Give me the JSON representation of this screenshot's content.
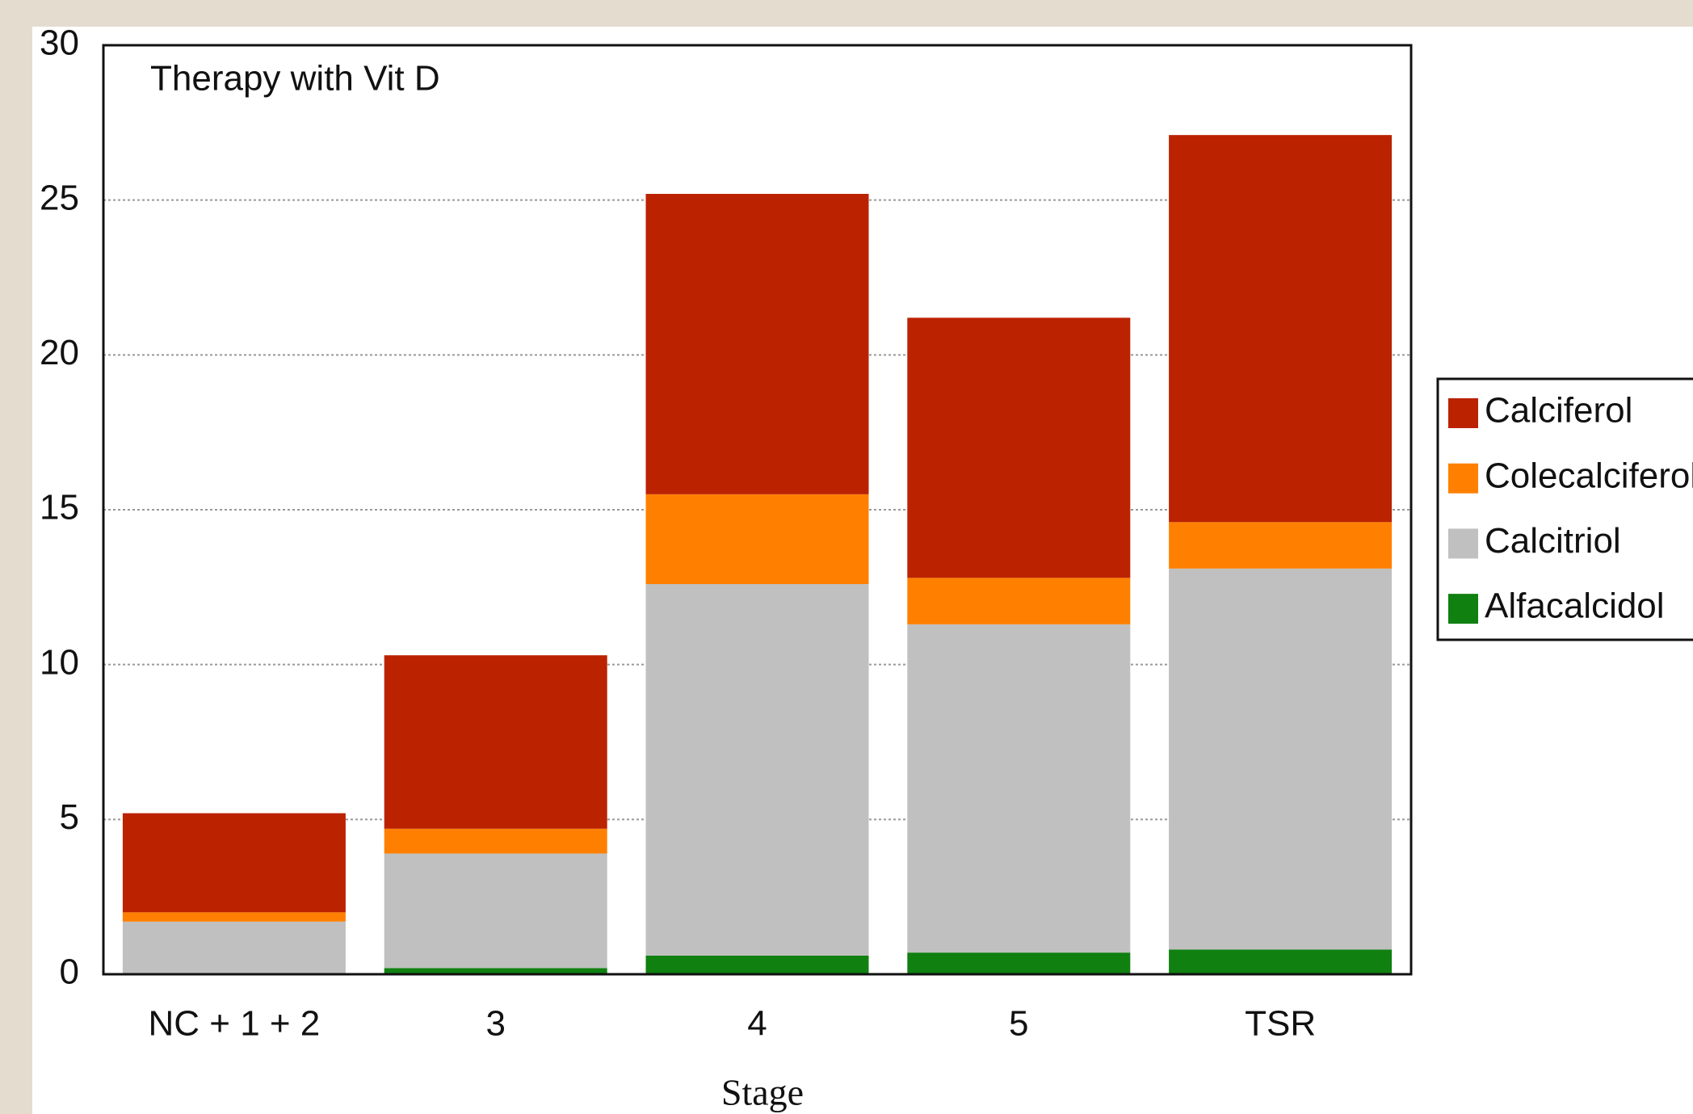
{
  "chart_data": {
    "type": "stacked_bar",
    "title": "Therapy with Vit D",
    "x_label": "Stage",
    "categories": [
      "NC + 1 + 2",
      "3",
      "4",
      "5",
      "TSR"
    ],
    "series": [
      {
        "name": "Calciferol",
        "color": "#bb2200",
        "values": [
          3.2,
          5.6,
          9.7,
          8.4,
          12.5
        ]
      },
      {
        "name": "Colecalciferol",
        "color": "#ff8000",
        "values": [
          0.3,
          0.8,
          2.9,
          1.5,
          1.5
        ]
      },
      {
        "name": "Calcitriol",
        "color": "#c0c0c0",
        "values": [
          1.7,
          3.7,
          12.0,
          10.6,
          12.3
        ]
      },
      {
        "name": "Alfacalcidol",
        "color": "#108010",
        "values": [
          0,
          0.2,
          0.6,
          0.7,
          0.8
        ]
      }
    ],
    "ylim": [
      0,
      30
    ],
    "yticks": [
      0,
      5,
      10,
      15,
      20,
      25,
      30
    ],
    "grid": true,
    "legend": "right"
  }
}
